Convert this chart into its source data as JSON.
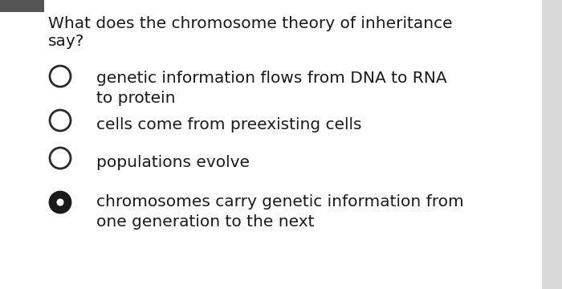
{
  "background_color": "#ffffff",
  "top_bar_color": "#555555",
  "question_line1": "What does the chromosome theory of inheritance",
  "question_line2": "say?",
  "options": [
    "genetic information flows from DNA to RNA\nto protein",
    "cells come from preexisting cells",
    "populations evolve",
    "chromosomes carry genetic information from\none generation to the next"
  ],
  "correct_index": 3,
  "question_fontsize": 14.5,
  "option_fontsize": 14.5,
  "text_color": "#1a1a1a",
  "circle_edge_color": "#2a2a2a",
  "circle_lw": 2.0,
  "filled_circle_color": "#1a1a1a",
  "scrollbar_color": "#d8d8d8",
  "top_bar_color2": "#666666",
  "figsize": [
    7.0,
    3.6
  ],
  "dpi": 100
}
